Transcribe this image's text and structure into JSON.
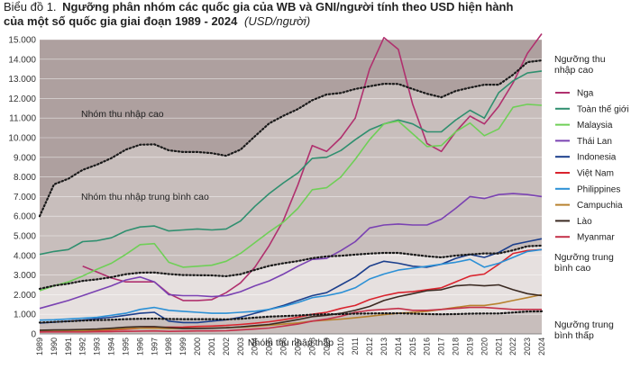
{
  "chart_data": {
    "type": "line",
    "title_prefix": "Biểu đồ 1.",
    "title_line1": "Ngưỡng phân nhóm các quốc gia của WB và GNI/người tính theo USD hiện hành",
    "title_line2": "của một số quốc gia giai đoạn 1989 - 2024",
    "unit": "(USD/người)",
    "ylim": [
      0,
      15000
    ],
    "yticks": [
      "0",
      "1.000",
      "2.000",
      "3.000",
      "4.000",
      "5.000",
      "6.000",
      "7.000",
      "8.000",
      "9.000",
      "10.000",
      "11.000",
      "12.000",
      "13.000",
      "14.000",
      "15.000"
    ],
    "x": [
      "1989",
      "1990",
      "1991",
      "1992",
      "1993",
      "1994",
      "1995",
      "1996",
      "1997",
      "1998",
      "1999",
      "2000",
      "2001",
      "2002",
      "2003",
      "2004",
      "2005",
      "2006",
      "2007",
      "2008",
      "2009",
      "2010",
      "2011",
      "2012",
      "2013",
      "2014",
      "2015",
      "2016",
      "2017",
      "2018",
      "2019",
      "2020",
      "2021",
      "2022",
      "2023",
      "2024"
    ],
    "regions": [
      {
        "label": "Nhóm thu nhập cao",
        "color": "#aea09f"
      },
      {
        "label": "Nhóm thu nhập trung bình cao",
        "color": "#c8bebc"
      },
      {
        "label": "",
        "color": "#e6e0df"
      },
      {
        "label": "Nhóm thu nhập thấp",
        "color": "#c8bebc"
      }
    ],
    "thresholds": [
      {
        "label_line1": "Ngưỡng thu",
        "label_line2": "nhập cao",
        "values": [
          6000,
          7620,
          7910,
          8360,
          8630,
          8960,
          9390,
          9640,
          9660,
          9360,
          9270,
          9270,
          9210,
          9080,
          9390,
          10070,
          10730,
          11120,
          11460,
          11910,
          12200,
          12280,
          12480,
          12620,
          12750,
          12740,
          12480,
          12240,
          12060,
          12380,
          12550,
          12700,
          12700,
          13210,
          13850,
          13940
        ]
      },
      {
        "label_line1": "Ngưỡng trung",
        "label_line2": "bình cao",
        "values": [
          2300,
          2460,
          2560,
          2700,
          2780,
          2890,
          3040,
          3120,
          3130,
          3050,
          3000,
          2990,
          2980,
          2940,
          3040,
          3260,
          3470,
          3600,
          3710,
          3860,
          3950,
          3980,
          4040,
          4090,
          4130,
          4130,
          4040,
          3960,
          3900,
          3990,
          4050,
          4100,
          4100,
          4260,
          4470,
          4500
        ]
      },
      {
        "label_line1": "Ngưỡng trung",
        "label_line2": "bình thấp",
        "values": [
          580,
          610,
          640,
          680,
          700,
          720,
          750,
          770,
          780,
          760,
          750,
          750,
          750,
          740,
          770,
          830,
          880,
          910,
          940,
          980,
          1000,
          1010,
          1030,
          1040,
          1050,
          1050,
          1030,
          1010,
          1000,
          1010,
          1030,
          1040,
          1040,
          1090,
          1140,
          1150
        ]
      }
    ],
    "series": [
      {
        "name": "Nga",
        "color": "#b0306e",
        "values": [
          null,
          null,
          null,
          3450,
          3150,
          2850,
          2650,
          2650,
          2650,
          2050,
          1700,
          1700,
          1750,
          2100,
          2600,
          3400,
          4500,
          5800,
          7600,
          9600,
          9300,
          10000,
          11000,
          13500,
          15100,
          14500,
          11700,
          9700,
          9300,
          10300,
          11100,
          10700,
          11600,
          12800,
          14300,
          15300
        ]
      },
      {
        "name": "Toàn thế giới",
        "color": "#2f8f6f",
        "values": [
          4050,
          4200,
          4300,
          4700,
          4750,
          4900,
          5250,
          5450,
          5500,
          5250,
          5300,
          5350,
          5300,
          5350,
          5750,
          6500,
          7150,
          7700,
          8200,
          8950,
          9000,
          9350,
          9900,
          10400,
          10700,
          10900,
          10700,
          10300,
          10300,
          10900,
          11400,
          11000,
          12300,
          12900,
          13300,
          13400
        ]
      },
      {
        "name": "Malaysia",
        "color": "#6fcf57",
        "values": [
          2200,
          2450,
          2650,
          2950,
          3300,
          3600,
          4050,
          4550,
          4600,
          3650,
          3400,
          3450,
          3500,
          3700,
          4100,
          4650,
          5200,
          5700,
          6400,
          7350,
          7450,
          8000,
          8900,
          9900,
          10700,
          10850,
          10200,
          9550,
          9600,
          10300,
          10750,
          10100,
          10450,
          11550,
          11700,
          11650
        ]
      },
      {
        "name": "Thái Lan",
        "color": "#7a42b2",
        "values": [
          1300,
          1500,
          1700,
          1950,
          2200,
          2450,
          2750,
          2900,
          2650,
          2000,
          1950,
          1950,
          1900,
          1950,
          2150,
          2450,
          2700,
          3050,
          3450,
          3800,
          3850,
          4250,
          4700,
          5400,
          5550,
          5600,
          5550,
          5550,
          5850,
          6400,
          7000,
          6900,
          7100,
          7150,
          7100,
          7000
        ]
      },
      {
        "name": "Indonesia",
        "color": "#1c3f8c",
        "values": [
          550,
          600,
          650,
          700,
          780,
          850,
          950,
          1050,
          1100,
          650,
          580,
          580,
          650,
          720,
          850,
          1050,
          1250,
          1450,
          1700,
          1950,
          2100,
          2500,
          2900,
          3450,
          3700,
          3600,
          3450,
          3400,
          3550,
          3850,
          4050,
          3900,
          4150,
          4550,
          4700,
          4850
        ]
      },
      {
        "name": "Việt Nam",
        "color": "#d9232d",
        "values": [
          100,
          110,
          120,
          140,
          170,
          200,
          240,
          290,
          330,
          340,
          350,
          380,
          400,
          430,
          480,
          540,
          620,
          720,
          850,
          1000,
          1100,
          1300,
          1450,
          1750,
          1950,
          2100,
          2150,
          2250,
          2350,
          2650,
          2950,
          3050,
          3550,
          4100,
          4250,
          4300
        ]
      },
      {
        "name": "Philippines",
        "color": "#2b90d6",
        "values": [
          700,
          720,
          760,
          800,
          850,
          950,
          1050,
          1250,
          1350,
          1200,
          1150,
          1100,
          1050,
          1050,
          1100,
          1150,
          1250,
          1400,
          1600,
          1850,
          1950,
          2100,
          2350,
          2800,
          3050,
          3250,
          3350,
          3450,
          3550,
          3650,
          3800,
          3400,
          3600,
          3900,
          4200,
          4300
        ]
      },
      {
        "name": "Campuchia",
        "color": "#b7822e",
        "values": [
          120,
          130,
          150,
          170,
          200,
          230,
          270,
          290,
          290,
          270,
          280,
          290,
          300,
          320,
          340,
          380,
          440,
          500,
          560,
          650,
          700,
          750,
          820,
          900,
          980,
          1050,
          1100,
          1150,
          1250,
          1350,
          1450,
          1450,
          1550,
          1700,
          1850,
          2000
        ]
      },
      {
        "name": "Lào",
        "color": "#3b2a22",
        "values": [
          190,
          200,
          210,
          230,
          250,
          290,
          340,
          370,
          370,
          320,
          280,
          280,
          290,
          310,
          360,
          420,
          480,
          600,
          730,
          880,
          950,
          1050,
          1200,
          1400,
          1700,
          1900,
          2050,
          2200,
          2250,
          2450,
          2500,
          2450,
          2500,
          2250,
          2050,
          1950
        ]
      },
      {
        "name": "Myanmar",
        "color": "#c4314a",
        "values": [
          100,
          100,
          100,
          100,
          110,
          120,
          130,
          140,
          150,
          130,
          140,
          150,
          150,
          160,
          200,
          250,
          300,
          400,
          500,
          650,
          750,
          900,
          1100,
          1200,
          1250,
          1300,
          1200,
          1200,
          1250,
          1300,
          1350,
          1350,
          1300,
          1250,
          1250,
          1250
        ]
      }
    ]
  }
}
